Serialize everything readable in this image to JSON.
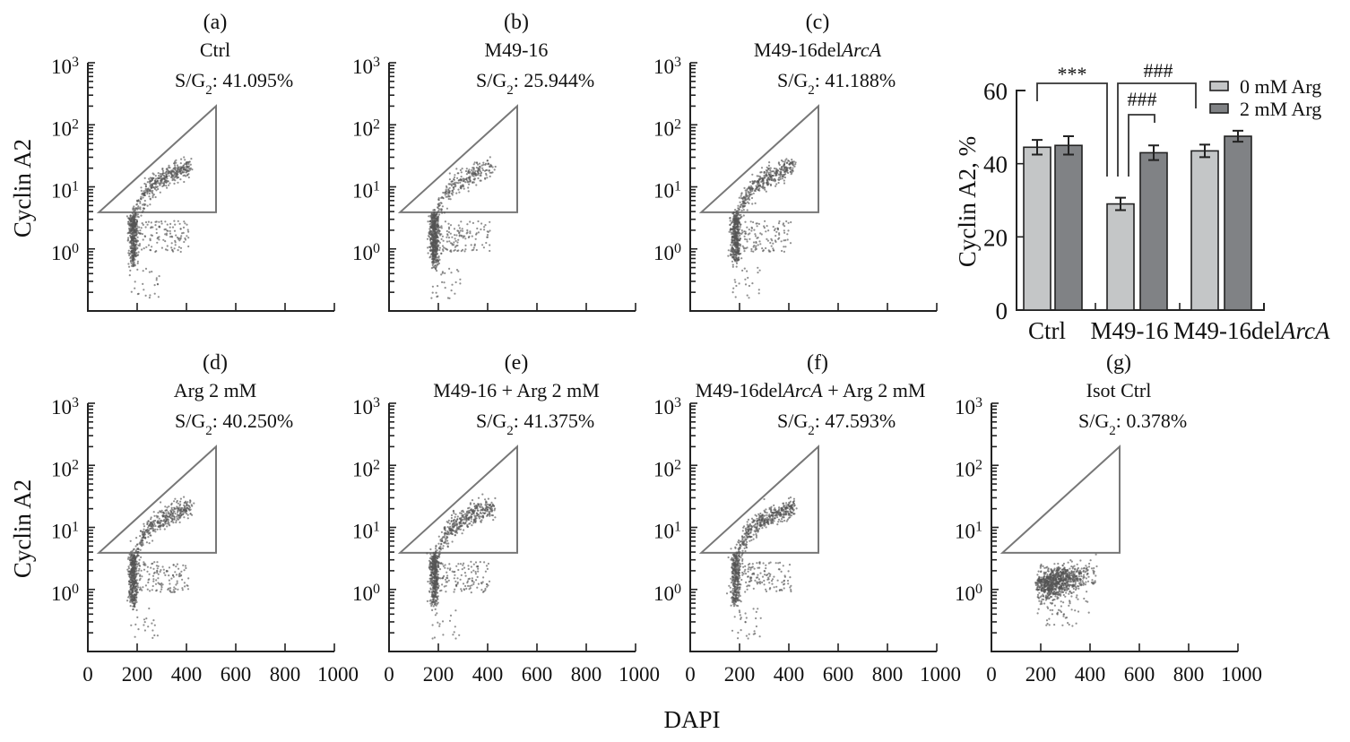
{
  "figure": {
    "xlabel": "DAPI",
    "ylabel": "Cyclin A2"
  },
  "chart_data": [
    {
      "type": "scatter",
      "label": "(a)",
      "title": [
        "Ctrl",
        "",
        ""
      ],
      "sg2_prefix": "S/G",
      "sg2_sub": "2",
      "sg2_value": ": 41.095%",
      "population": "cycle",
      "sg2_fraction": 0.41095,
      "xlabel": "DAPI",
      "ylabel": "Cyclin A2",
      "xlim": [
        0,
        1000
      ],
      "ylim_log10": [
        -1,
        3
      ],
      "xticks": [
        "0",
        "200",
        "400",
        "600",
        "800",
        "1000"
      ],
      "yticks": [
        {
          "base": "10",
          "exp": "0"
        },
        {
          "base": "10",
          "exp": "1"
        },
        {
          "base": "10",
          "exp": "2"
        },
        {
          "base": "10",
          "exp": "3"
        }
      ],
      "gate": [
        [
          45,
          3.9
        ],
        [
          520,
          200
        ],
        [
          520,
          3.9
        ]
      ]
    },
    {
      "type": "scatter",
      "label": "(b)",
      "title": [
        "M49-16",
        "",
        ""
      ],
      "sg2_prefix": "S/G",
      "sg2_sub": "2",
      "sg2_value": ": 25.944%",
      "population": "cycle",
      "sg2_fraction": 0.25944,
      "xlim": [
        0,
        1000
      ],
      "ylim_log10": [
        -1,
        3
      ],
      "gate": [
        [
          45,
          3.9
        ],
        [
          520,
          200
        ],
        [
          520,
          3.9
        ]
      ]
    },
    {
      "type": "scatter",
      "label": "(c)",
      "title": [
        "M49-16del",
        "ArcA",
        ""
      ],
      "sg2_prefix": "S/G",
      "sg2_sub": "2",
      "sg2_value": ": 41.188%",
      "population": "cycle",
      "sg2_fraction": 0.41188,
      "xlim": [
        0,
        1000
      ],
      "ylim_log10": [
        -1,
        3
      ],
      "gate": [
        [
          45,
          3.9
        ],
        [
          520,
          200
        ],
        [
          520,
          3.9
        ]
      ]
    },
    {
      "type": "scatter",
      "label": "(d)",
      "title": [
        "Arg 2 mM",
        "",
        ""
      ],
      "sg2_prefix": "S/G",
      "sg2_sub": "2",
      "sg2_value": ": 40.250%",
      "population": "cycle",
      "sg2_fraction": 0.4025,
      "xlim": [
        0,
        1000
      ],
      "ylim_log10": [
        -1,
        3
      ],
      "gate": [
        [
          45,
          3.9
        ],
        [
          520,
          200
        ],
        [
          520,
          3.9
        ]
      ]
    },
    {
      "type": "scatter",
      "label": "(e)",
      "title": [
        "M49-16 + Arg 2 mM",
        "",
        ""
      ],
      "sg2_prefix": "S/G",
      "sg2_sub": "2",
      "sg2_value": ": 41.375%",
      "population": "cycle",
      "sg2_fraction": 0.41375,
      "xlim": [
        0,
        1000
      ],
      "ylim_log10": [
        -1,
        3
      ],
      "gate": [
        [
          45,
          3.9
        ],
        [
          520,
          200
        ],
        [
          520,
          3.9
        ]
      ]
    },
    {
      "type": "scatter",
      "label": "(f)",
      "title": [
        "M49-16del",
        "ArcA",
        " + Arg 2 mM"
      ],
      "sg2_prefix": "S/G",
      "sg2_sub": "2",
      "sg2_value": ": 47.593%",
      "population": "cycle",
      "sg2_fraction": 0.47593,
      "xlim": [
        0,
        1000
      ],
      "ylim_log10": [
        -1,
        3
      ],
      "gate": [
        [
          45,
          3.9
        ],
        [
          520,
          200
        ],
        [
          520,
          3.9
        ]
      ]
    },
    {
      "type": "scatter",
      "label": "(g)",
      "title": [
        "Isot Ctrl",
        "",
        ""
      ],
      "sg2_prefix": "S/G",
      "sg2_sub": "2",
      "sg2_value": ": 0.378%",
      "population": "isotype",
      "sg2_fraction": 0.00378,
      "xlim": [
        0,
        1000
      ],
      "ylim_log10": [
        -1,
        3
      ],
      "gate": [
        [
          45,
          3.9
        ],
        [
          520,
          200
        ],
        [
          520,
          3.9
        ]
      ]
    },
    {
      "type": "bar",
      "ylabel": "Cyclin A2, %",
      "ylim": [
        0,
        60
      ],
      "yticks": [
        "0",
        "20",
        "40",
        "60"
      ],
      "categories": [
        [
          "Ctrl",
          ""
        ],
        [
          "M49-16",
          ""
        ],
        [
          "M49-16del",
          "ArcA"
        ]
      ],
      "series": [
        {
          "name": "0 mM Arg",
          "color": "#c4c6c7",
          "values": [
            44.5,
            29.0,
            43.5
          ],
          "errors": [
            2.0,
            1.7,
            1.7
          ]
        },
        {
          "name": "2 mM Arg",
          "color": "#808285",
          "values": [
            45.0,
            43.0,
            47.5
          ],
          "errors": [
            2.5,
            2.0,
            1.5
          ]
        }
      ],
      "annotations": [
        "***",
        "###",
        "###"
      ]
    }
  ]
}
